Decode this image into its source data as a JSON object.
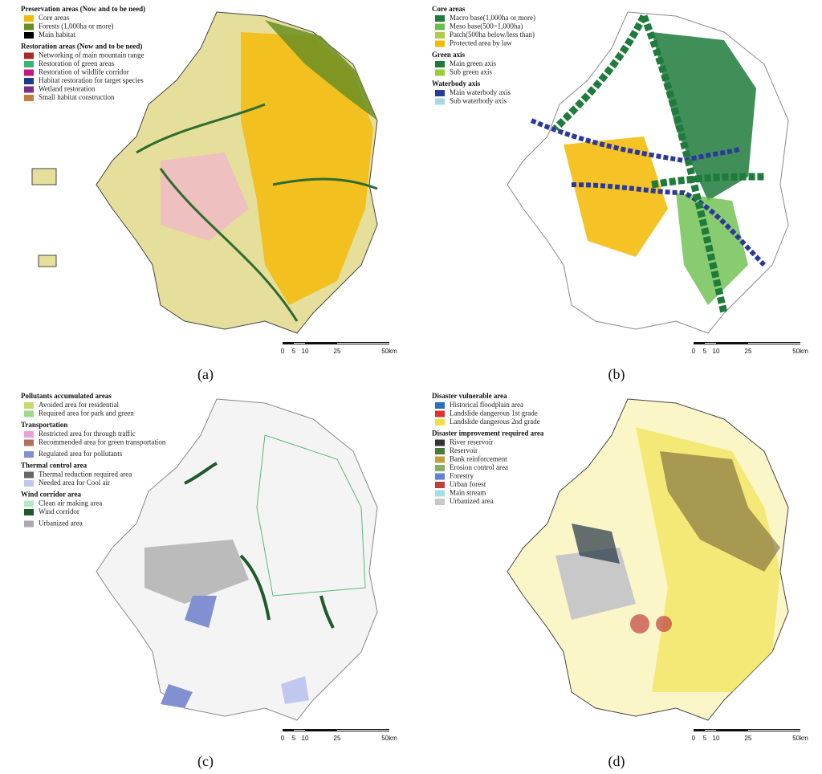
{
  "panels": [
    {
      "label": "(a)",
      "scale": [
        "0",
        "5",
        "10",
        "25",
        "50km"
      ],
      "legend": [
        {
          "title": "Preservation areas (Now and to be need)",
          "items": [
            {
              "text": "Core areas",
              "color": "#f5b800"
            },
            {
              "text": "Forests (1,000ha or more)",
              "color": "#6b8e23"
            },
            {
              "text": "Main habitat",
              "color": "#000000"
            }
          ]
        },
        {
          "title": "Restoration areas (Now and to be need)",
          "items": [
            {
              "text": "Networking of main mountain range",
              "color": "#a52a2a"
            },
            {
              "text": "Restoration of green areas",
              "color": "#3cb371"
            },
            {
              "text": "Restoration of wildlife corridor",
              "color": "#c71585"
            },
            {
              "text": "Habitat restoration for target species",
              "color": "#1e3a8a"
            },
            {
              "text": "Wetland restoration",
              "color": "#7b2d8e"
            },
            {
              "text": "Small habitat construction",
              "color": "#c08040"
            }
          ]
        }
      ]
    },
    {
      "label": "(b)",
      "scale": [
        "0",
        "5",
        "10",
        "25",
        "50km"
      ],
      "legend": [
        {
          "title": "Core areas",
          "items": [
            {
              "text": "Macro base(1,000ha or more)",
              "color": "#1e7b3c"
            },
            {
              "text": "Meso base(500~1,000ha)",
              "color": "#6abf4b"
            },
            {
              "text": "Patch(500ha below/less than)",
              "color": "#b5c94a"
            },
            {
              "text": "Protected area by law",
              "color": "#f5b800"
            }
          ]
        },
        {
          "title": "Green axis",
          "items": [
            {
              "text": "Main green axis",
              "color": "#1e7b3c"
            },
            {
              "text": "Sub green axis",
              "color": "#9acd32"
            }
          ]
        },
        {
          "title": "Waterbody axis",
          "items": [
            {
              "text": "Main waterbody axis",
              "color": "#2b3a9a"
            },
            {
              "text": "Sub waterbody axis",
              "color": "#a8d8e8"
            }
          ]
        }
      ]
    },
    {
      "label": "(c)",
      "scale": [
        "0",
        "5",
        "10",
        "25",
        "50km"
      ],
      "legend": [
        {
          "title": "Pollutants accumulated areas",
          "items": [
            {
              "text": "Avoided area for residential",
              "color": "#c8d96f"
            },
            {
              "text": "Required area for park and green",
              "color": "#9ed98f"
            }
          ]
        },
        {
          "title": "Transportation",
          "items": [
            {
              "text": "Restricted area for through traffic",
              "color": "#e8a0d8"
            },
            {
              "text": "Recommended area for green transportation",
              "color": "#b0705a"
            }
          ]
        },
        {
          "items": [
            {
              "text": "Regulated area for pollutants",
              "color": "#8090d0"
            }
          ]
        },
        {
          "title": "Thermal control area",
          "items": [
            {
              "text": "Thermal reduction required area",
              "color": "#666666"
            },
            {
              "text": "Needed area for Cool air",
              "color": "#c0c8f0"
            }
          ]
        },
        {
          "title": "Wind corridor area",
          "items": [
            {
              "text": "Clean air making area",
              "color": "#b8e8c8"
            },
            {
              "text": "Wind corridor",
              "color": "#1e5a2a"
            }
          ]
        },
        {
          "items": [
            {
              "text": "Urbanized area",
              "color": "#aaaaaa"
            }
          ]
        }
      ]
    },
    {
      "label": "(d)",
      "scale": [
        "0",
        "5",
        "10",
        "25",
        "50km"
      ],
      "legend": [
        {
          "title": "Disaster vulnerable area",
          "items": [
            {
              "text": "Historical floodplain area",
              "color": "#2a6fc0"
            },
            {
              "text": "Landslide dangerous 1st grade",
              "color": "#e03030"
            },
            {
              "text": "Landslide dangerous 2nd grade",
              "color": "#f0e040"
            }
          ]
        },
        {
          "title": "Disaster improvement required area",
          "items": [
            {
              "text": "River reservoir",
              "color": "#333333"
            },
            {
              "text": "Reservoir",
              "color": "#4a7a3a"
            },
            {
              "text": "Bank reinforcement",
              "color": "#c0a040"
            },
            {
              "text": "Erosion control area",
              "color": "#80b060"
            },
            {
              "text": "Forestry",
              "color": "#6080d0"
            },
            {
              "text": "Urban forest",
              "color": "#c04040"
            },
            {
              "text": "Main stream",
              "color": "#a8dce8"
            },
            {
              "text": "Urbanized area",
              "color": "#c8c8c8"
            }
          ]
        }
      ]
    }
  ]
}
